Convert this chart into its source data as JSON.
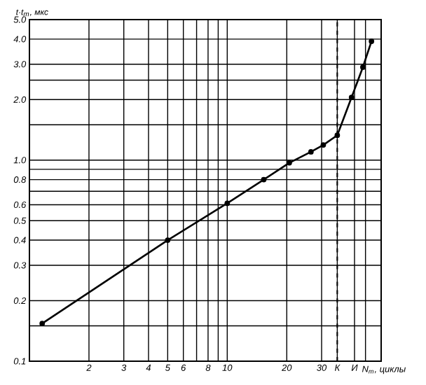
{
  "chart_data": {
    "type": "line",
    "xlabel": "N$_{т}$, циклы",
    "ylabel": "t·t$_{m}$, мкс",
    "log": "xy",
    "grid": true,
    "marker": "circle",
    "line_style": "solid",
    "xlim": [
      1,
      60
    ],
    "ylim": [
      0.1,
      5
    ],
    "xticks": [
      2,
      3,
      4,
      5,
      6,
      {
        "value": 7,
        "label": null
      },
      8,
      {
        "value": 9,
        "label": null
      },
      10,
      20,
      30,
      {
        "value": 36,
        "label": "К"
      },
      {
        "value": 44,
        "label": "И"
      },
      {
        "value": 50,
        "label": null
      }
    ],
    "yticks": [
      {
        "value": 0.1,
        "label": "0.1"
      },
      {
        "value": 0.15,
        "label": null
      },
      {
        "value": 0.2,
        "label": "0.2"
      },
      {
        "value": 0.3,
        "label": "0.3"
      },
      {
        "value": 0.4,
        "label": "0.4"
      },
      {
        "value": 0.5,
        "label": "0.5"
      },
      {
        "value": 0.6,
        "label": "0.6"
      },
      {
        "value": 0.7,
        "label": null
      },
      {
        "value": 0.8,
        "label": "0.8"
      },
      {
        "value": 0.9,
        "label": null
      },
      {
        "value": 1,
        "label": "1.0"
      },
      {
        "value": 1.5,
        "label": null
      },
      {
        "value": 2,
        "label": "2.0"
      },
      {
        "value": 2.5,
        "label": null
      },
      {
        "value": 3,
        "label": "3.0"
      },
      {
        "value": 4,
        "label": "4.0"
      },
      {
        "value": 5,
        "label": "5.0"
      }
    ],
    "ref_lines": [
      {
        "axis": "x",
        "value": 36,
        "line_style": "dashed"
      }
    ],
    "series": [
      {
        "color": "#000000",
        "x": [
          1.16,
          5,
          10,
          15.3,
          20.6,
          26.5,
          30.6,
          36,
          42.5,
          48.5,
          53.6
        ],
        "values": [
          0.154,
          0.4,
          0.61,
          0.8,
          0.97,
          1.1,
          1.19,
          1.33,
          2.05,
          2.9,
          3.9
        ]
      }
    ]
  }
}
